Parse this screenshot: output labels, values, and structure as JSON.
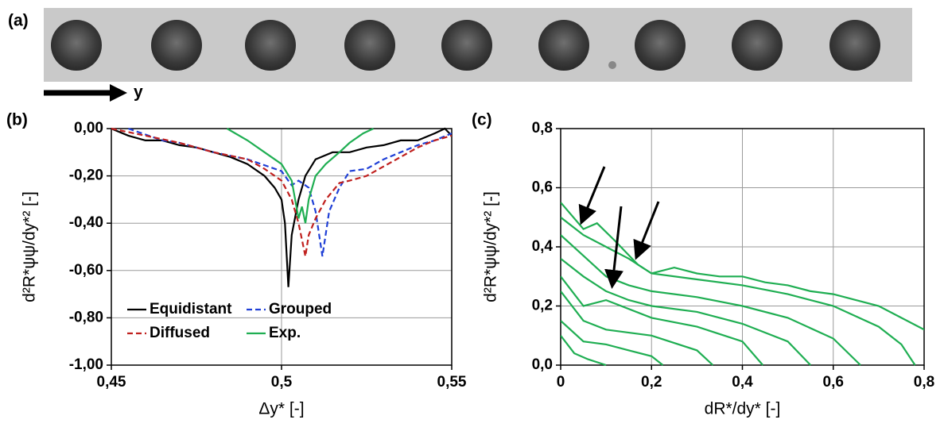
{
  "panel_a": {
    "label": "(a)",
    "arrow_label": "y"
  },
  "chart_data": [
    {
      "type": "line",
      "panel_label": "(b)",
      "x_label": "Δy* [-]",
      "y_label": "d²R*ψψ/dy*² [-]",
      "xlim": [
        0.45,
        0.55
      ],
      "ylim": [
        -1,
        0
      ],
      "xticks": [
        {
          "value": 0.45,
          "label": "0,45"
        },
        {
          "value": 0.5,
          "label": "0,5"
        },
        {
          "value": 0.55,
          "label": "0,55"
        }
      ],
      "yticks": [
        {
          "value": 0,
          "label": "0,00"
        },
        {
          "value": -0.2,
          "label": "-0,20"
        },
        {
          "value": -0.4,
          "label": "-0,40"
        },
        {
          "value": -0.6,
          "label": "-0,60"
        },
        {
          "value": -0.8,
          "label": "-0,80"
        },
        {
          "value": -1,
          "label": "-1,00"
        }
      ],
      "grid": true,
      "legend": "lower left",
      "series": [
        {
          "name": "Equidistant",
          "color": "#000000",
          "linestyle": "solid",
          "x": [
            0.45,
            0.455,
            0.46,
            0.465,
            0.47,
            0.475,
            0.48,
            0.485,
            0.49,
            0.495,
            0.498,
            0.5,
            0.501,
            0.502,
            0.503,
            0.505,
            0.507,
            0.51,
            0.515,
            0.52,
            0.525,
            0.53,
            0.535,
            0.54,
            0.545,
            0.548,
            0.55
          ],
          "values": [
            0,
            -0.03,
            -0.05,
            -0.05,
            -0.07,
            -0.08,
            -0.1,
            -0.12,
            -0.15,
            -0.2,
            -0.25,
            -0.3,
            -0.4,
            -0.67,
            -0.45,
            -0.3,
            -0.2,
            -0.13,
            -0.1,
            -0.1,
            -0.08,
            -0.07,
            -0.05,
            -0.05,
            -0.02,
            0,
            -0.03
          ]
        },
        {
          "name": "Grouped",
          "color": "#1f3fd6",
          "linestyle": "dashed",
          "x": [
            0.455,
            0.465,
            0.47,
            0.48,
            0.49,
            0.5,
            0.503,
            0.505,
            0.508,
            0.51,
            0.512,
            0.514,
            0.517,
            0.52,
            0.525,
            0.53,
            0.535,
            0.54,
            0.545,
            0.55
          ],
          "values": [
            0,
            -0.05,
            -0.06,
            -0.1,
            -0.13,
            -0.18,
            -0.24,
            -0.22,
            -0.25,
            -0.35,
            -0.54,
            -0.35,
            -0.25,
            -0.18,
            -0.17,
            -0.13,
            -0.1,
            -0.07,
            -0.05,
            -0.02
          ]
        },
        {
          "name": "Diffused",
          "color": "#c0201e",
          "linestyle": "dashed",
          "x": [
            0.45,
            0.46,
            0.47,
            0.48,
            0.49,
            0.495,
            0.5,
            0.503,
            0.505,
            0.507,
            0.508,
            0.51,
            0.513,
            0.517,
            0.52,
            0.525,
            0.53,
            0.535,
            0.54,
            0.545,
            0.55
          ],
          "values": [
            0,
            -0.03,
            -0.06,
            -0.1,
            -0.13,
            -0.17,
            -0.22,
            -0.3,
            -0.4,
            -0.54,
            -0.45,
            -0.38,
            -0.3,
            -0.23,
            -0.22,
            -0.2,
            -0.16,
            -0.12,
            -0.08,
            -0.05,
            -0.03
          ]
        },
        {
          "name": "Exp.",
          "color": "#1fae52",
          "linestyle": "solid",
          "x": [
            0.484,
            0.49,
            0.495,
            0.5,
            0.503,
            0.505,
            0.506,
            0.507,
            0.508,
            0.51,
            0.513,
            0.517,
            0.52,
            0.524,
            0.527
          ],
          "values": [
            0,
            -0.05,
            -0.1,
            -0.15,
            -0.22,
            -0.38,
            -0.33,
            -0.4,
            -0.3,
            -0.2,
            -0.15,
            -0.1,
            -0.06,
            -0.02,
            0
          ]
        }
      ]
    },
    {
      "type": "line",
      "panel_label": "(c)",
      "x_label": "dR*/dy* [-]",
      "y_label": "d²R*ψψ/dy*² [-]",
      "xlim": [
        0,
        0.8
      ],
      "ylim": [
        0,
        0.8
      ],
      "xticks": [
        0,
        {
          "value": 0.2,
          "label": "0,2"
        },
        {
          "value": 0.4,
          "label": "0,4"
        },
        {
          "value": 0.6,
          "label": "0,6"
        },
        {
          "value": 0.8,
          "label": "0,8"
        }
      ],
      "yticks": [
        {
          "value": 0,
          "label": "0,0"
        },
        {
          "value": 0.2,
          "label": "0,2"
        },
        {
          "value": 0.4,
          "label": "0,4"
        },
        {
          "value": 0.6,
          "label": "0,6"
        },
        {
          "value": 0.8,
          "label": "0,8"
        }
      ],
      "grid": true,
      "series": [
        {
          "color": "#1fae52",
          "x": [
            0,
            0.05,
            0.08,
            0.12,
            0.17,
            0.2,
            0.25,
            0.3,
            0.35,
            0.4,
            0.45,
            0.5,
            0.55,
            0.6,
            0.65,
            0.7,
            0.75,
            0.8
          ],
          "values": [
            0.55,
            0.46,
            0.48,
            0.42,
            0.34,
            0.31,
            0.33,
            0.31,
            0.3,
            0.3,
            0.28,
            0.27,
            0.25,
            0.24,
            0.22,
            0.2,
            0.16,
            0.12
          ]
        },
        {
          "color": "#1fae52",
          "x": [
            0,
            0.05,
            0.1,
            0.15,
            0.2,
            0.3,
            0.4,
            0.5,
            0.6,
            0.7,
            0.75,
            0.78
          ],
          "values": [
            0.5,
            0.44,
            0.4,
            0.36,
            0.31,
            0.29,
            0.27,
            0.24,
            0.2,
            0.13,
            0.07,
            0
          ]
        },
        {
          "color": "#1fae52",
          "x": [
            0,
            0.05,
            0.1,
            0.15,
            0.2,
            0.3,
            0.4,
            0.5,
            0.6,
            0.66
          ],
          "values": [
            0.44,
            0.37,
            0.3,
            0.27,
            0.25,
            0.23,
            0.2,
            0.16,
            0.09,
            0
          ]
        },
        {
          "color": "#1fae52",
          "x": [
            0,
            0.05,
            0.1,
            0.15,
            0.2,
            0.3,
            0.4,
            0.5,
            0.55
          ],
          "values": [
            0.36,
            0.3,
            0.25,
            0.22,
            0.2,
            0.18,
            0.14,
            0.08,
            0
          ]
        },
        {
          "color": "#1fae52",
          "x": [
            0,
            0.05,
            0.1,
            0.2,
            0.3,
            0.4,
            0.445
          ],
          "values": [
            0.3,
            0.2,
            0.22,
            0.16,
            0.13,
            0.08,
            0
          ]
        },
        {
          "color": "#1fae52",
          "x": [
            0,
            0.05,
            0.1,
            0.2,
            0.3,
            0.335
          ],
          "values": [
            0.25,
            0.15,
            0.12,
            0.1,
            0.05,
            0
          ]
        },
        {
          "color": "#1fae52",
          "x": [
            0,
            0.05,
            0.1,
            0.15,
            0.2,
            0.225
          ],
          "values": [
            0.15,
            0.08,
            0.07,
            0.05,
            0.03,
            0
          ]
        },
        {
          "color": "#1fae52",
          "x": [
            0,
            0.03,
            0.06,
            0.1
          ],
          "values": [
            0.1,
            0.04,
            0.02,
            0
          ]
        }
      ]
    }
  ]
}
